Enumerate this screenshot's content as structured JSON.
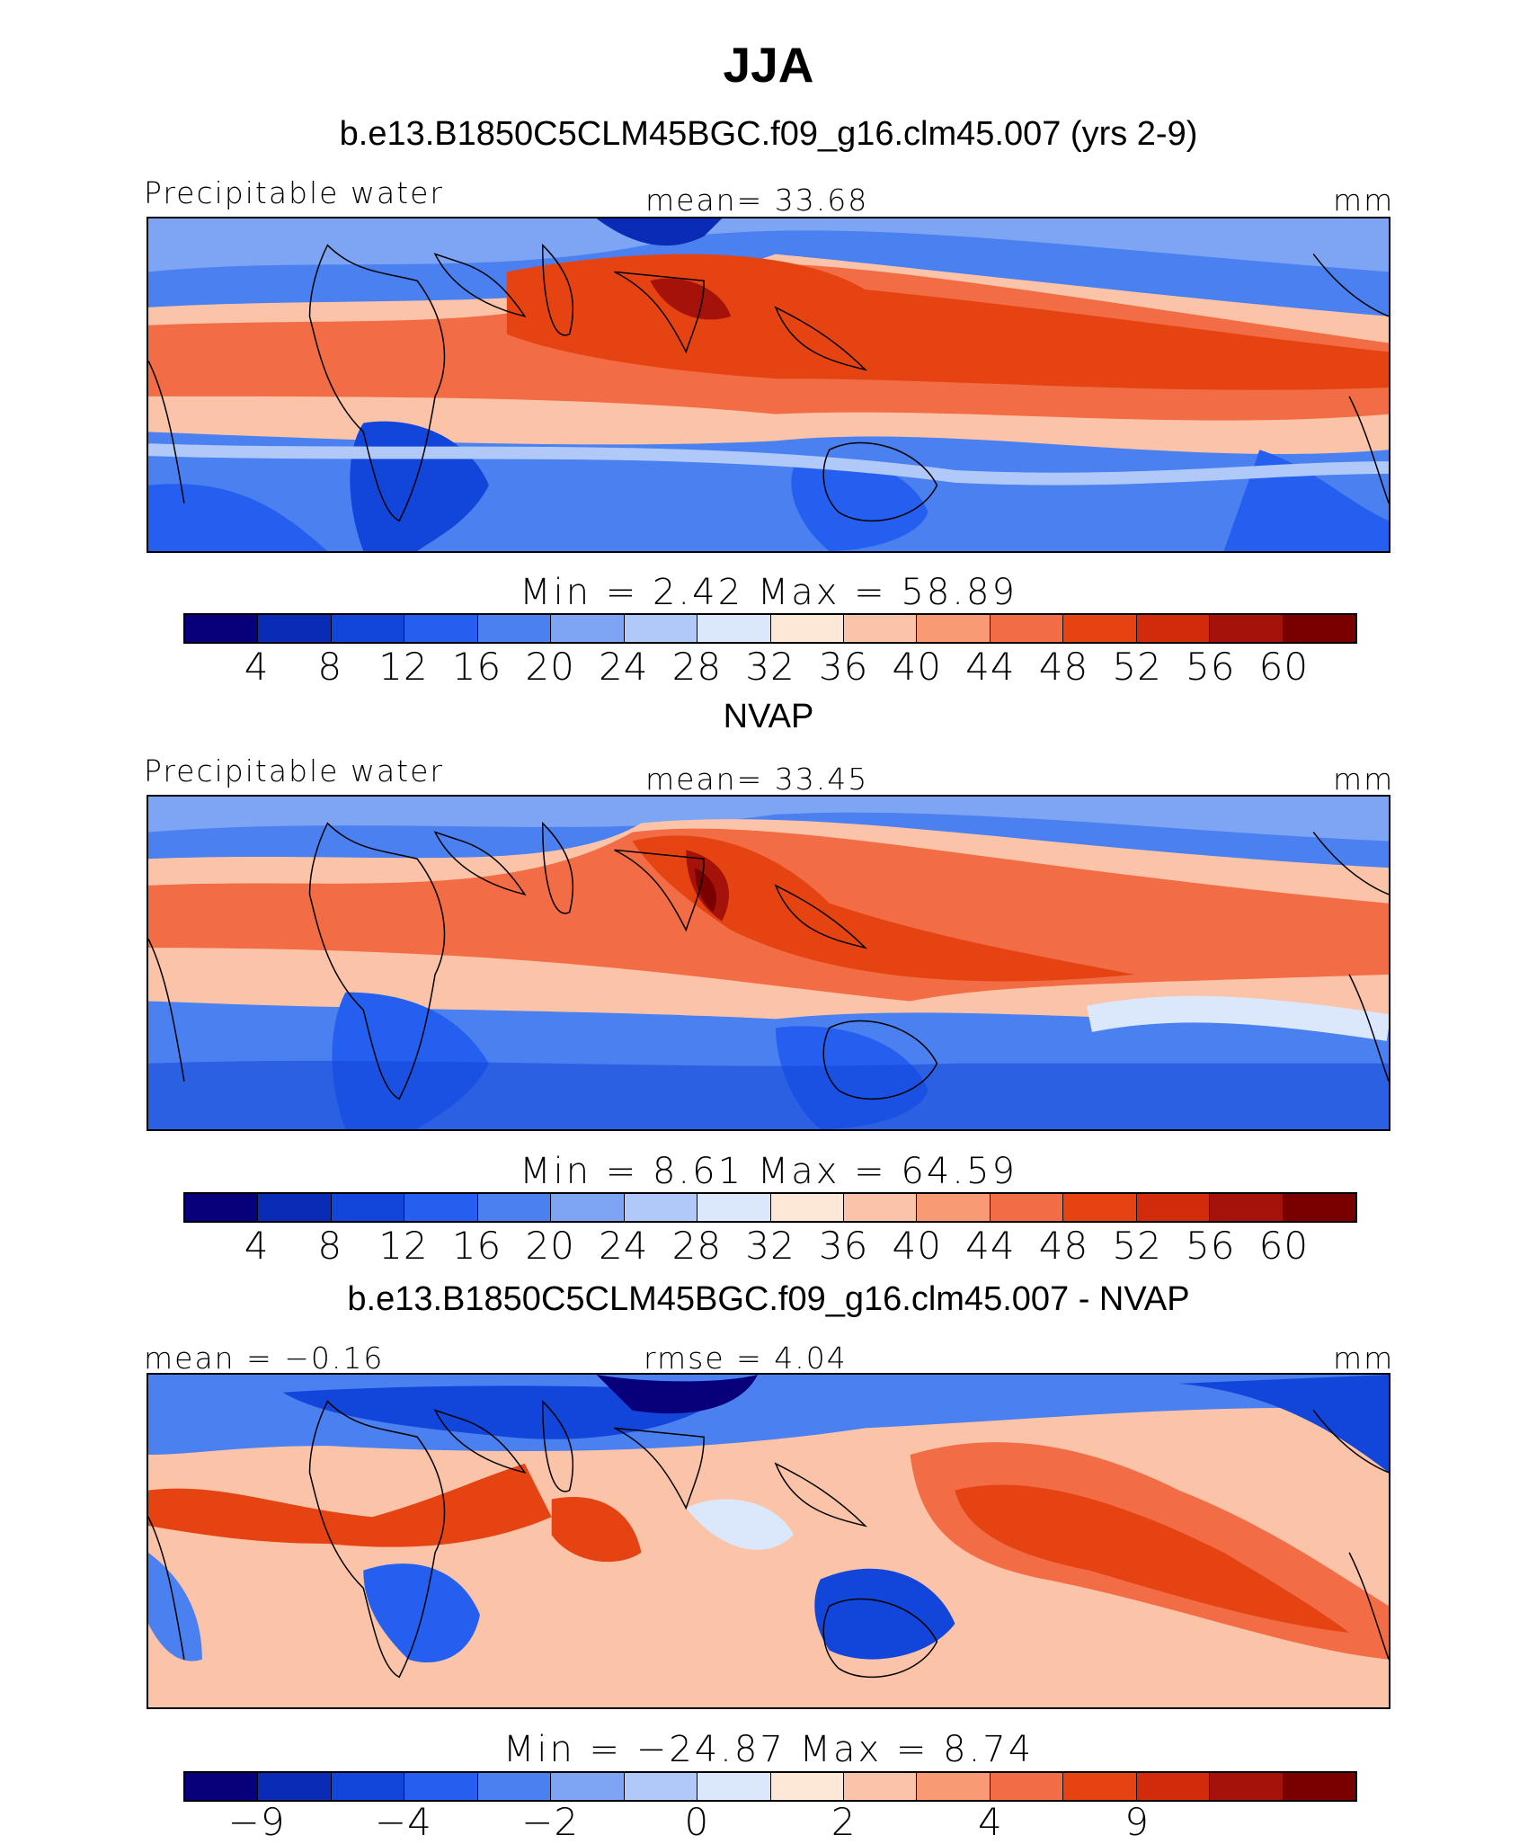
{
  "figure": {
    "title": "JJA",
    "colors": [
      "#08007a",
      "#0a2bb5",
      "#1245d9",
      "#245ff0",
      "#4a80ef",
      "#7ea5f3",
      "#b0c9f8",
      "#dbe8fc",
      "#fde8d8",
      "#fbc4a9",
      "#f89b75",
      "#f26c45",
      "#e64313",
      "#d12b0c",
      "#a51209",
      "#7a0000"
    ],
    "panels": [
      {
        "subtitle": "b.e13.B1850C5CLM45BGC.f09_g16.clm45.007 (yrs 2-9)",
        "left_label": "Precipitable water",
        "center_label": "mean=   33.68",
        "units": "mm",
        "minmax": "Min  =    2.42  Max  =   58.89",
        "ticks": [
          "4",
          "8",
          "12",
          "16",
          "20",
          "24",
          "28",
          "32",
          "36",
          "40",
          "44",
          "48",
          "52",
          "56",
          "60"
        ]
      },
      {
        "subtitle": "NVAP",
        "left_label": "Precipitable water",
        "center_label": "mean=   33.45",
        "units": "mm",
        "minmax": "Min  =    8.61  Max  =   64.59",
        "ticks": [
          "4",
          "8",
          "12",
          "16",
          "20",
          "24",
          "28",
          "32",
          "36",
          "40",
          "44",
          "48",
          "52",
          "56",
          "60"
        ]
      },
      {
        "subtitle": "b.e13.B1850C5CLM45BGC.f09_g16.clm45.007 - NVAP",
        "left_label": "mean =   −0.16",
        "center_label": "rmse =    4.04",
        "units": "mm",
        "minmax": "Min  = −24.87  Max  =    8.74",
        "ticks": [
          "−9",
          "−4",
          "−2",
          "0",
          "2",
          "4",
          "9"
        ]
      }
    ]
  }
}
